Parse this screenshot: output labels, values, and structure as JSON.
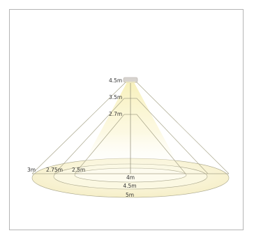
{
  "diagram": {
    "height_labels": [
      "4.5m",
      "3.5m",
      "2.7m"
    ],
    "width_labels": [
      "3m",
      "2.75m",
      "2.5m"
    ],
    "diameter_labels": [
      "4m",
      "4.5m",
      "5m"
    ],
    "colors": {
      "cone_stroke": "#a8a58a",
      "ellipse_fill": "#fbf7dd",
      "beam_glow": "#f6eeb0",
      "fixture": "#d8d4cf",
      "frame": "#b5b5b5"
    },
    "icons": [
      "ceiling-light-fixture-icon"
    ]
  }
}
